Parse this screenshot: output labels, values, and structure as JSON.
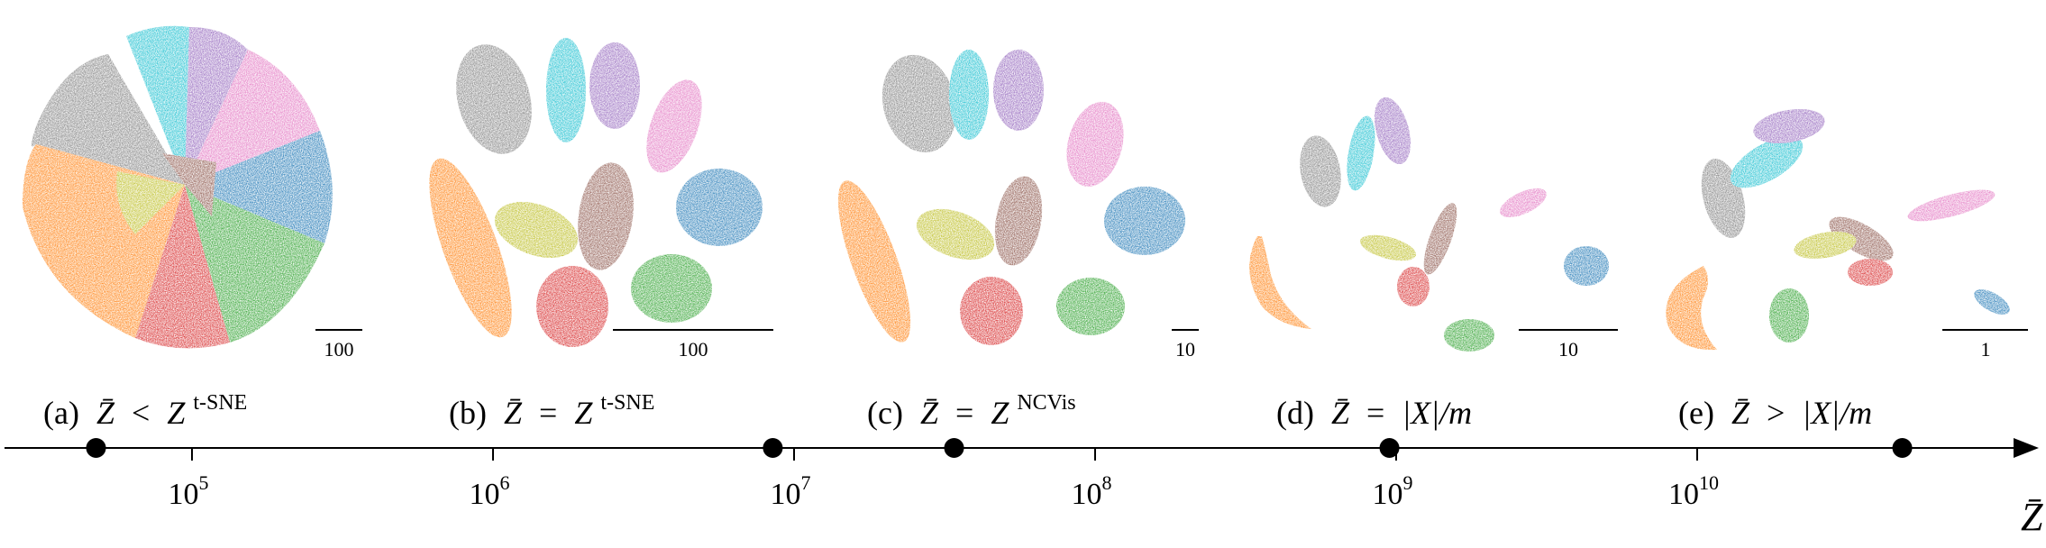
{
  "figure": {
    "panels": [
      {
        "id": "a",
        "tag": "(a)",
        "zbar": "Z̄",
        "op": "<",
        "rhs": "Z",
        "rhs_sup": "t-SNE",
        "scale_label": "100"
      },
      {
        "id": "b",
        "tag": "(b)",
        "zbar": "Z̄",
        "op": "=",
        "rhs": "Z",
        "rhs_sup": "t-SNE",
        "scale_label": "100"
      },
      {
        "id": "c",
        "tag": "(c)",
        "zbar": "Z̄",
        "op": "=",
        "rhs": "Z",
        "rhs_sup": "NCVis",
        "scale_label": "10"
      },
      {
        "id": "d",
        "tag": "(d)",
        "zbar": "Z̄",
        "op": "=",
        "rhs": "|X|/m",
        "rhs_sup": "",
        "scale_label": "10"
      },
      {
        "id": "e",
        "tag": "(e)",
        "zbar": "Z̄",
        "op": ">",
        "rhs": "|X|/m",
        "rhs_sup": "",
        "scale_label": "1"
      }
    ],
    "axis": {
      "label": "Z̄",
      "scale": "log",
      "ticks": [
        {
          "value": 100000,
          "base": "10",
          "exp": "5"
        },
        {
          "value": 1000000,
          "base": "10",
          "exp": "6"
        },
        {
          "value": 10000000,
          "base": "10",
          "exp": "7"
        },
        {
          "value": 100000000,
          "base": "10",
          "exp": "8"
        },
        {
          "value": 1000000000,
          "base": "10",
          "exp": "9"
        },
        {
          "value": 10000000000,
          "base": "10",
          "exp": "10"
        }
      ],
      "markers": [
        48000,
        8500000,
        34000000,
        950000000,
        48000000000
      ]
    },
    "cluster_colors": [
      "#1f77b4",
      "#ff7f0e",
      "#2ca02c",
      "#d62728",
      "#9467bd",
      "#8c564b",
      "#e377c2",
      "#7f7f7f",
      "#bcbd22",
      "#17becf"
    ]
  }
}
